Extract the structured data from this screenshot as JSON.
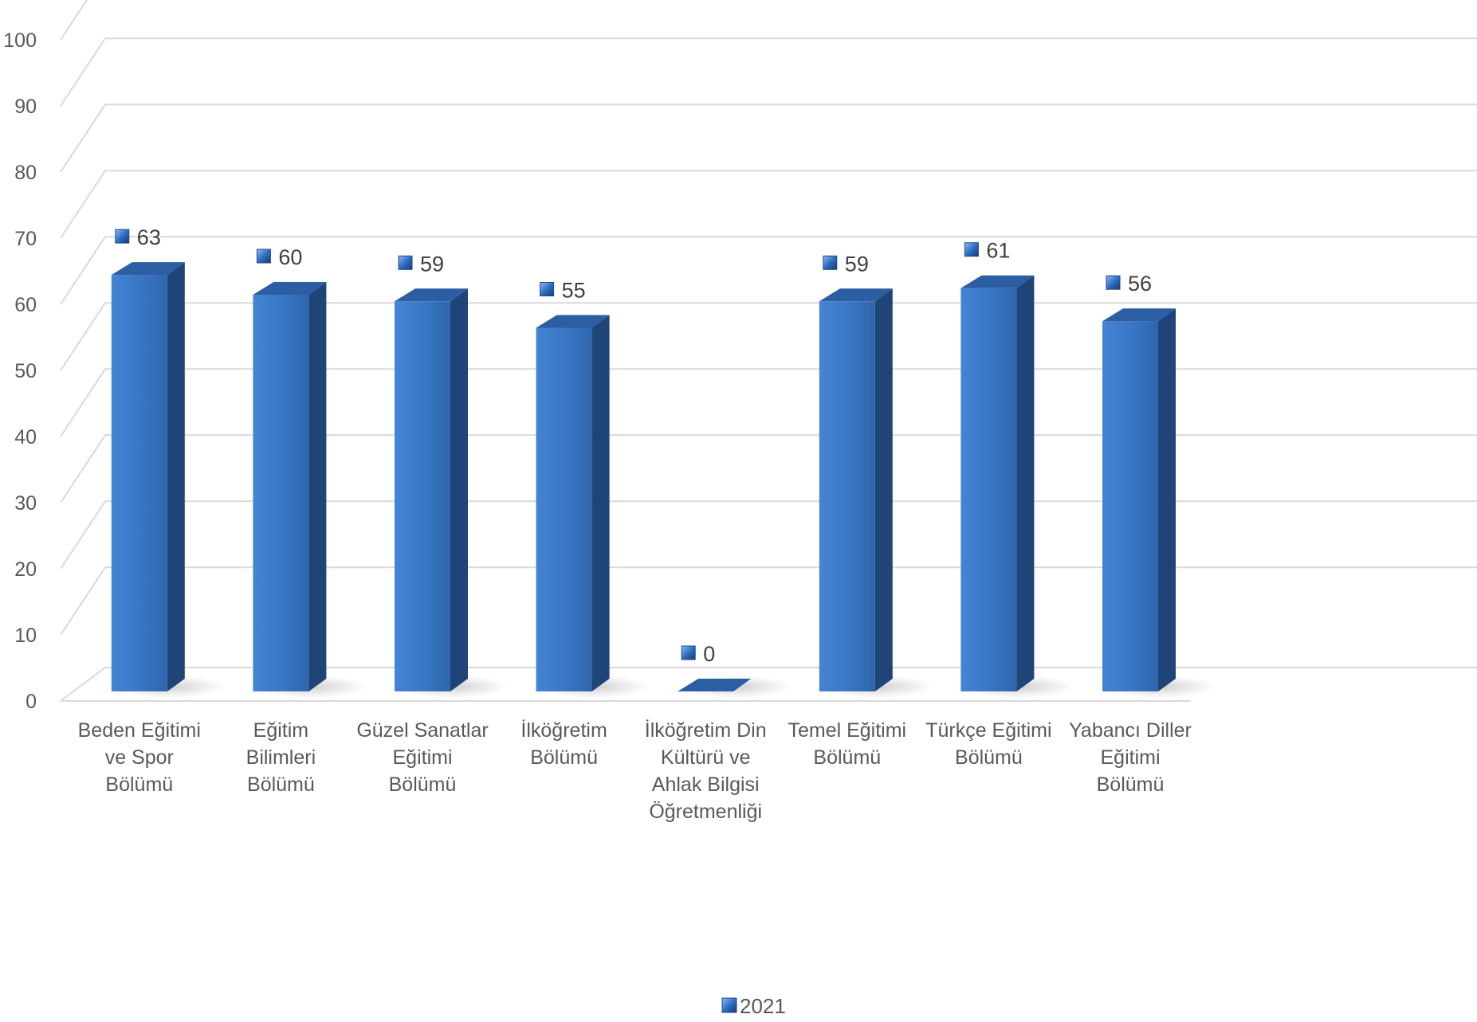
{
  "chart_data": {
    "type": "bar",
    "categories": [
      [
        "Beden Eğitimi",
        "ve Spor",
        "Bölümü"
      ],
      [
        "Eğitim",
        "Bilimleri",
        "Bölümü"
      ],
      [
        "Güzel Sanatlar",
        "Eğitimi",
        "Bölümü"
      ],
      [
        "İlköğretim",
        "Bölümü"
      ],
      [
        "İlköğretim Din",
        "Kültürü ve",
        "Ahlak Bilgisi",
        "Öğretmenliği"
      ],
      [
        "Temel Eğitimi",
        "Bölümü"
      ],
      [
        "Türkçe Eğitimi",
        "Bölümü"
      ],
      [
        "Yabancı Diller",
        "Eğitimi",
        "Bölümü"
      ]
    ],
    "series": [
      {
        "name": "2021",
        "values": [
          63,
          60,
          59,
          55,
          0,
          59,
          61,
          56
        ]
      }
    ],
    "ylim": [
      0,
      100
    ],
    "yticks": [
      0,
      10,
      20,
      30,
      40,
      50,
      60,
      70,
      80,
      90,
      100
    ],
    "grid": true,
    "legend": "bottom",
    "colors": {
      "bar_front": "#3a77c6",
      "bar_side": "#1f4478",
      "bar_top": "#2c5ea3",
      "marker": "#2e6fc4"
    }
  }
}
